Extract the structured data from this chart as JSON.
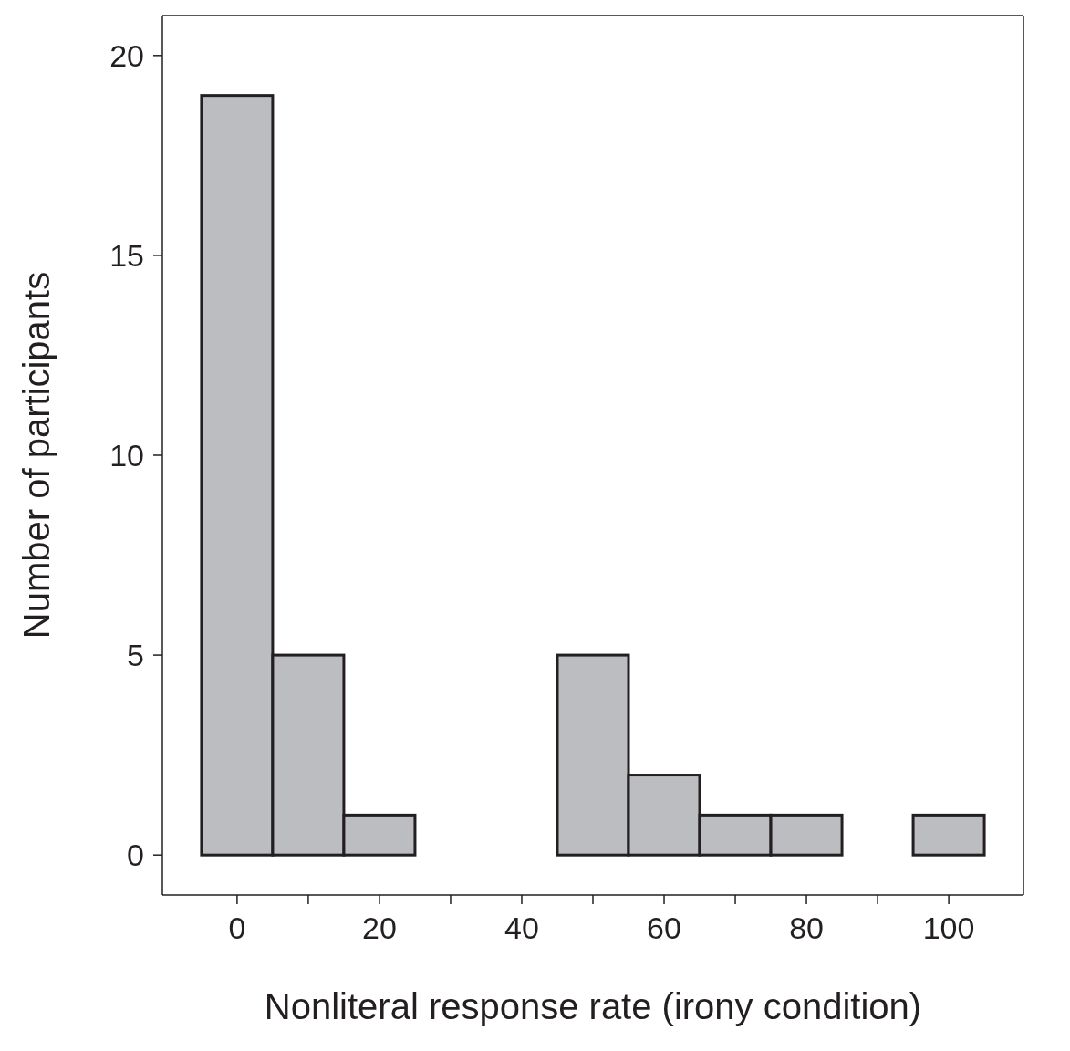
{
  "chart_data": {
    "type": "histogram",
    "xlabel": "Nonliteral response rate (irony condition)",
    "ylabel": "Number of participants",
    "bins": [
      -5,
      5,
      15,
      25,
      35,
      45,
      55,
      65,
      75,
      85,
      95,
      105
    ],
    "values": [
      19,
      5,
      1,
      0,
      0,
      5,
      2,
      1,
      1,
      0,
      1
    ],
    "color": "#bcbdc0",
    "xlim": [
      -10.5,
      110.5
    ],
    "xticks": [
      0,
      {
        "value": 10,
        "label": null
      },
      20,
      {
        "value": 30,
        "label": null
      },
      40,
      {
        "value": 50,
        "label": null
      },
      60,
      {
        "value": 70,
        "label": null
      },
      80,
      {
        "value": 90,
        "label": null
      },
      100
    ],
    "ylim": [
      -1,
      21
    ],
    "yticks": [
      0,
      5,
      10,
      15,
      20
    ],
    "grid": false
  }
}
